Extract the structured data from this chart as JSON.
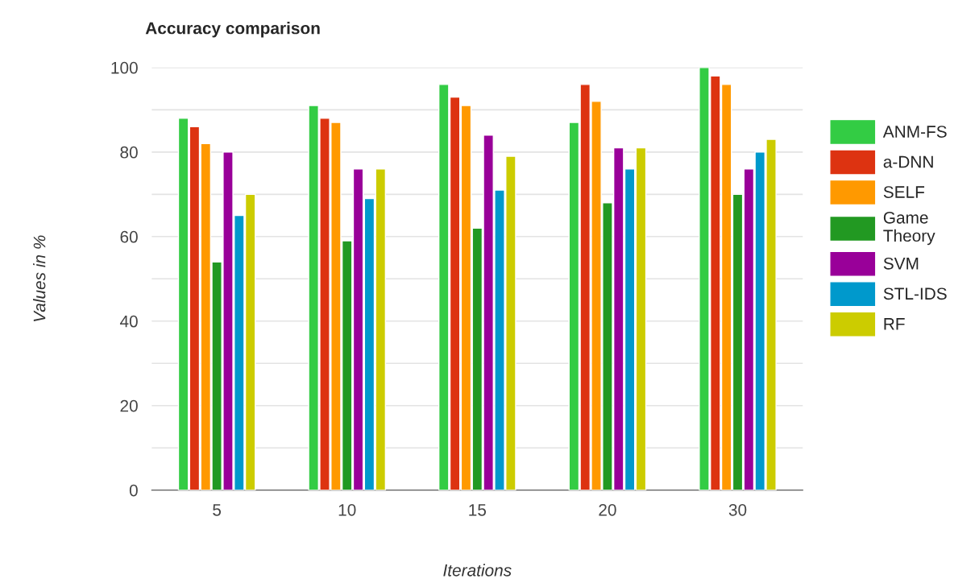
{
  "chart_data": {
    "type": "bar",
    "title": "Accuracy comparison",
    "xlabel": "Iterations",
    "ylabel": "Values in %",
    "categories": [
      "5",
      "10",
      "15",
      "20",
      "30"
    ],
    "series": [
      {
        "name": "ANM-FS",
        "color": "#33cc44",
        "values": [
          88,
          91,
          96,
          87,
          100
        ]
      },
      {
        "name": "a-DNN",
        "color": "#dd3311",
        "values": [
          86,
          88,
          93,
          96,
          98
        ]
      },
      {
        "name": "SELF",
        "color": "#ff9900",
        "values": [
          82,
          87,
          91,
          92,
          96
        ]
      },
      {
        "name": "Game Theory",
        "color": "#229922",
        "values": [
          54,
          59,
          62,
          68,
          70
        ]
      },
      {
        "name": "SVM",
        "color": "#990099",
        "values": [
          80,
          76,
          84,
          81,
          76
        ]
      },
      {
        "name": "STL-IDS",
        "color": "#0099cc",
        "values": [
          65,
          69,
          71,
          76,
          80
        ]
      },
      {
        "name": "RF",
        "color": "#cccc00",
        "values": [
          70,
          76,
          79,
          81,
          83
        ]
      }
    ],
    "ylim": [
      0,
      100
    ],
    "yticks": [
      0,
      {
        "value": 10,
        "label": null
      },
      20,
      {
        "value": 30,
        "label": null
      },
      40,
      {
        "value": 50,
        "label": null
      },
      60,
      {
        "value": 70,
        "label": null
      },
      80,
      {
        "value": 90,
        "label": null
      },
      100
    ],
    "grid": "y",
    "legend": "right"
  }
}
